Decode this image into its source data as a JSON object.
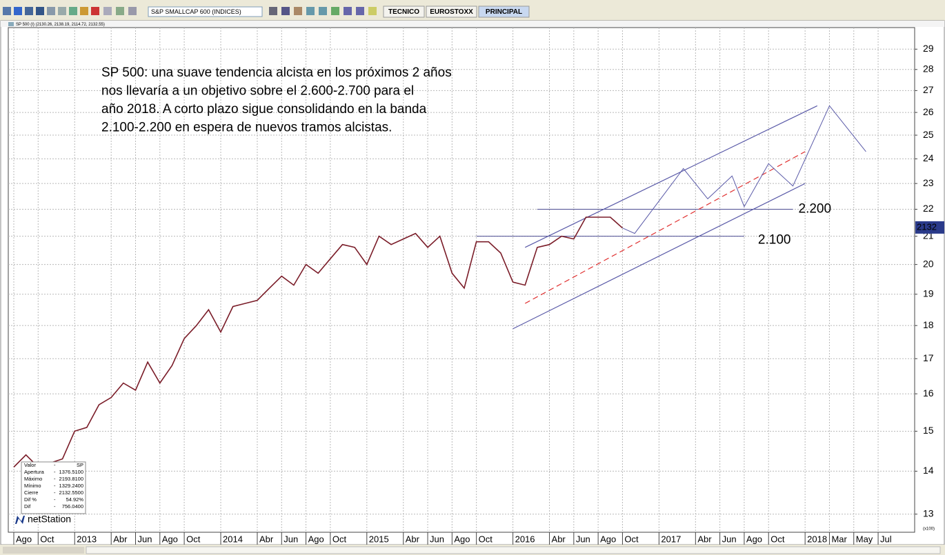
{
  "toolbar": {
    "symbol": "S&P SMALLCAP 600 (INDICES)",
    "tabs": [
      "TECNICO",
      "EUROSTOXX",
      "PRINCIPAL"
    ]
  },
  "chart": {
    "header": "SP 500 (I) (2130.26, 2138.19, 2114.72, 2132.55)",
    "annotation": [
      "SP 500: una suave tendencia alcista en los próximos 2 años",
      "nos llevaría a un objetivo sobre el 2.600-2.700 para el",
      "año 2018. A corto plazo sigue consolidando en la banda",
      "2.100-2.200 en espera de nuevos tramos alcistas."
    ],
    "log_scale": true,
    "grid": true,
    "xlim": [
      "2012-08",
      "2018-10"
    ],
    "ylim": [
      12.6,
      30.1
    ],
    "yticks": [
      13,
      14,
      15,
      16,
      17,
      18,
      19,
      20,
      21,
      22,
      23,
      24,
      25,
      26,
      27,
      28,
      29
    ],
    "y_unit": "(x100)",
    "xticks": [
      {
        "value": "2012-08",
        "label": "Ago"
      },
      {
        "value": "2012-10",
        "label": "Oct"
      },
      {
        "value": "2013-01",
        "label": "2013"
      },
      {
        "value": "2013-04",
        "label": "Abr"
      },
      {
        "value": "2013-06",
        "label": "Jun"
      },
      {
        "value": "2013-08",
        "label": "Ago"
      },
      {
        "value": "2013-10",
        "label": "Oct"
      },
      {
        "value": "2014-01",
        "label": "2014"
      },
      {
        "value": "2014-04",
        "label": "Abr"
      },
      {
        "value": "2014-06",
        "label": "Jun"
      },
      {
        "value": "2014-08",
        "label": "Ago"
      },
      {
        "value": "2014-10",
        "label": "Oct"
      },
      {
        "value": "2015-01",
        "label": "2015"
      },
      {
        "value": "2015-04",
        "label": "Abr"
      },
      {
        "value": "2015-06",
        "label": "Jun"
      },
      {
        "value": "2015-08",
        "label": "Ago"
      },
      {
        "value": "2015-10",
        "label": "Oct"
      },
      {
        "value": "2016-01",
        "label": "2016"
      },
      {
        "value": "2016-04",
        "label": "Abr"
      },
      {
        "value": "2016-06",
        "label": "Jun"
      },
      {
        "value": "2016-08",
        "label": "Ago"
      },
      {
        "value": "2016-10",
        "label": "Oct"
      },
      {
        "value": "2017-01",
        "label": "2017"
      },
      {
        "value": "2017-04",
        "label": "Abr"
      },
      {
        "value": "2017-06",
        "label": "Jun"
      },
      {
        "value": "2017-08",
        "label": "Ago"
      },
      {
        "value": "2017-10",
        "label": "Oct"
      },
      {
        "value": "2018-01",
        "label": "2018"
      },
      {
        "value": "2018-03",
        "label": "Mar"
      },
      {
        "value": "2018-05",
        "label": "May"
      },
      {
        "value": "2018-07",
        "label": "Jul"
      }
    ],
    "price": {
      "color": "#7a1c28",
      "x": [
        "2012-08",
        "2012-09",
        "2012-10",
        "2012-11",
        "2012-12",
        "2013-01",
        "2013-02",
        "2013-03",
        "2013-04",
        "2013-05",
        "2013-06",
        "2013-07",
        "2013-08",
        "2013-09",
        "2013-10",
        "2013-11",
        "2013-12",
        "2014-01",
        "2014-02",
        "2014-03",
        "2014-04",
        "2014-05",
        "2014-06",
        "2014-07",
        "2014-08",
        "2014-09",
        "2014-10",
        "2014-11",
        "2014-12",
        "2015-01",
        "2015-02",
        "2015-03",
        "2015-04",
        "2015-05",
        "2015-06",
        "2015-07",
        "2015-08",
        "2015-09",
        "2015-10",
        "2015-11",
        "2015-12",
        "2016-01",
        "2016-02",
        "2016-03",
        "2016-04",
        "2016-05",
        "2016-06",
        "2016-07",
        "2016-08",
        "2016-09",
        "2016-10"
      ],
      "values": [
        14.1,
        14.4,
        14.1,
        14.2,
        14.3,
        15.0,
        15.1,
        15.7,
        15.9,
        16.3,
        16.1,
        16.9,
        16.3,
        16.8,
        17.6,
        18.0,
        18.5,
        17.8,
        18.6,
        18.7,
        18.8,
        19.2,
        19.6,
        19.3,
        20.0,
        19.7,
        20.2,
        20.7,
        20.6,
        20.0,
        21.0,
        20.7,
        20.9,
        21.1,
        20.6,
        21.0,
        19.7,
        19.2,
        20.8,
        20.8,
        20.4,
        19.4,
        19.3,
        20.6,
        20.7,
        21.0,
        20.9,
        21.7,
        21.7,
        21.7,
        21.3
      ]
    },
    "projection": {
      "color": "#5a5aa8",
      "x": [
        "2016-10",
        "2016-11",
        "2017-03",
        "2017-05",
        "2017-07",
        "2017-08",
        "2017-10",
        "2017-12",
        "2018-03",
        "2018-06"
      ],
      "values": [
        21.3,
        21.1,
        23.6,
        22.4,
        23.3,
        22.1,
        23.8,
        22.9,
        26.3,
        24.3
      ]
    },
    "channel": [
      {
        "color": "#5a5aa8",
        "dashed": false,
        "x": [
          "2016-02",
          "2018-02"
        ],
        "values": [
          20.6,
          26.3
        ]
      },
      {
        "color": "#e03030",
        "dashed": true,
        "x": [
          "2016-02",
          "2018-01"
        ],
        "values": [
          18.7,
          24.3
        ]
      },
      {
        "color": "#5a5aa8",
        "dashed": false,
        "x": [
          "2016-01",
          "2018-01"
        ],
        "values": [
          17.9,
          23.0
        ]
      }
    ],
    "levels": [
      {
        "value": 22,
        "label": "2.200",
        "x": [
          "2016-03",
          "2017-12"
        ]
      },
      {
        "value": 21,
        "label": "2.100",
        "x": [
          "2015-10",
          "2017-08"
        ]
      }
    ],
    "last": {
      "value": 21.32,
      "label": "2132"
    },
    "info": [
      [
        "Valor",
        "-",
        "SP"
      ],
      [
        "Apertura",
        "-",
        "1376.5100"
      ],
      [
        "Máximo",
        "-",
        "2193.8100"
      ],
      [
        "Mínimo",
        "-",
        "1329.2400"
      ],
      [
        "Cierre",
        "-",
        "2132.5500"
      ],
      [
        "Dif %",
        "-",
        "54.92%"
      ],
      [
        "Dif",
        "-",
        "756.0400"
      ]
    ],
    "logo": "netStation"
  }
}
